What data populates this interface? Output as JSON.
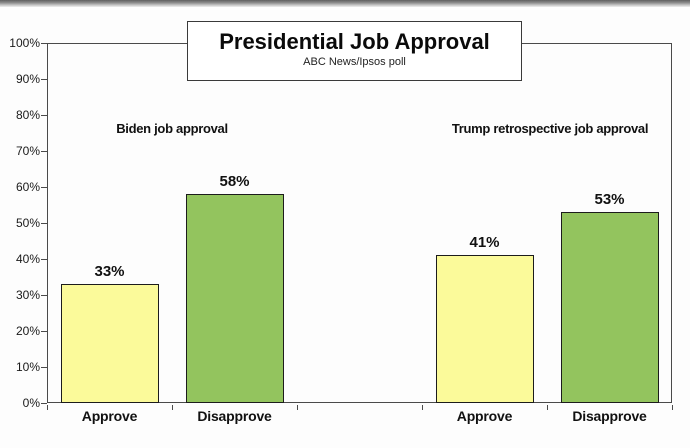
{
  "chart_data": {
    "type": "bar",
    "title": "Presidential Job Approval",
    "subtitle": "ABC News/Ipsos poll",
    "ylim": [
      0,
      100
    ],
    "ytick_interval": 10,
    "ytick_labels": [
      "0%",
      "10%",
      "20%",
      "30%",
      "40%",
      "50%",
      "60%",
      "70%",
      "80%",
      "90%",
      "100%"
    ],
    "grid": false,
    "legend": "none",
    "groups": [
      {
        "label": "Biden job approval",
        "categories": [
          "Approve",
          "Disapprove"
        ],
        "values": [
          33,
          58
        ],
        "value_labels": [
          "33%",
          "58%"
        ]
      },
      {
        "label": "Trump retrospective job approval",
        "categories": [
          "Approve",
          "Disapprove"
        ],
        "values": [
          41,
          53
        ],
        "value_labels": [
          "41%",
          "53%"
        ]
      }
    ],
    "colors": {
      "approve_fill": "#fbfa9a",
      "disapprove_fill": "#93c45e",
      "bar_border": "#1c1c1c",
      "axis": "#4a4a4a",
      "text": "#111111"
    }
  }
}
